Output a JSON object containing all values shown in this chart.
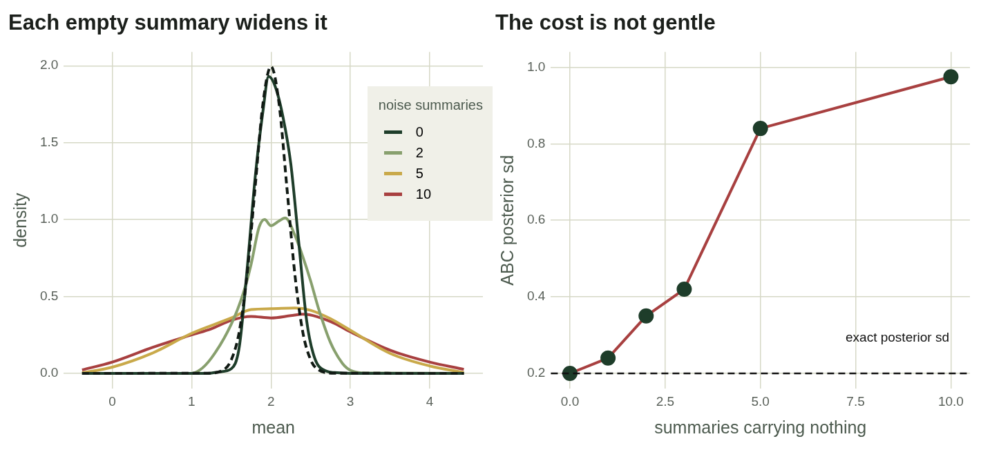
{
  "chart_data": [
    {
      "type": "line",
      "title": "Each empty summary widens it",
      "xlabel": "mean",
      "ylabel": "density",
      "legend_title": "noise summaries",
      "legend": "top right",
      "grid": true,
      "line_style": "solid",
      "marker": "none",
      "xlim": [
        -0.61,
        4.67
      ],
      "xticks": [
        {
          "value": 0,
          "label": "0"
        },
        1,
        2,
        3,
        4
      ],
      "ylim": [
        -0.1,
        2.09
      ],
      "yticks": [
        {
          "value": 0,
          "label": "0.0"
        },
        0.5,
        {
          "value": 1,
          "label": "1.0"
        },
        1.5,
        {
          "value": 2,
          "label": "2.0"
        }
      ],
      "series": [
        {
          "name": "0",
          "color": "#1e3d2a",
          "x": [
            -0.38,
            1.2,
            1.35,
            1.5,
            1.6,
            1.7,
            1.8,
            1.9,
            1.97,
            2.05,
            2.15,
            2.25,
            2.35,
            2.45,
            2.55,
            2.7,
            2.8,
            3.0,
            4.43
          ],
          "values": [
            0,
            0,
            0.01,
            0.03,
            0.17,
            0.68,
            1.27,
            1.71,
            1.93,
            1.87,
            1.67,
            1.36,
            0.85,
            0.34,
            0.1,
            0.014,
            0.005,
            0,
            0
          ]
        },
        {
          "name": "2",
          "color": "#88a06e",
          "x": [
            -0.38,
            1.0,
            1.1,
            1.25,
            1.5,
            1.65,
            1.75,
            1.85,
            1.92,
            2.0,
            2.1,
            2.18,
            2.3,
            2.4,
            2.5,
            2.6,
            2.75,
            2.9,
            3.0,
            3.2,
            4.43
          ],
          "values": [
            0,
            0,
            0.02,
            0.1,
            0.32,
            0.52,
            0.71,
            0.95,
            1.0,
            0.96,
            0.99,
            1.01,
            0.9,
            0.76,
            0.6,
            0.42,
            0.2,
            0.065,
            0.02,
            0.002,
            0
          ]
        },
        {
          "name": "5",
          "color": "#c9a94a",
          "x": [
            -0.38,
            0,
            0.5,
            1.0,
            1.5,
            1.75,
            2.0,
            2.3,
            2.5,
            2.75,
            3.0,
            3.5,
            4.0,
            4.43
          ],
          "values": [
            0.003,
            0.04,
            0.13,
            0.26,
            0.36,
            0.415,
            0.42,
            0.425,
            0.41,
            0.355,
            0.28,
            0.13,
            0.048,
            0.005
          ]
        },
        {
          "name": "10",
          "color": "#a84040",
          "x": [
            -0.38,
            0,
            0.5,
            1.0,
            1.25,
            1.5,
            1.75,
            2.0,
            2.25,
            2.4,
            2.75,
            3.0,
            3.5,
            4.0,
            4.43
          ],
          "values": [
            0.022,
            0.073,
            0.167,
            0.25,
            0.29,
            0.345,
            0.37,
            0.36,
            0.375,
            0.384,
            0.337,
            0.27,
            0.15,
            0.073,
            0.026
          ]
        },
        {
          "color": "#111a14",
          "line_style": "dashed",
          "x": [
            -0.38,
            1.2,
            1.4,
            1.5,
            1.6,
            1.7,
            1.8,
            1.9,
            2.0,
            2.1,
            2.2,
            2.3,
            2.4,
            2.5,
            2.6,
            2.8,
            4.43
          ],
          "values": [
            0,
            0.001,
            0.022,
            0.088,
            0.27,
            0.648,
            1.21,
            1.76,
            1.995,
            1.76,
            1.21,
            0.648,
            0.27,
            0.088,
            0.022,
            0.001,
            0
          ]
        }
      ]
    },
    {
      "type": "line",
      "title": "The cost is not gentle",
      "xlabel": "summaries carrying nothing",
      "ylabel": "ABC posterior sd",
      "grid": true,
      "legend": false,
      "marker": "circle",
      "line_style": "solid",
      "xlim": [
        -0.5,
        10.5
      ],
      "xticks": [
        {
          "value": 0,
          "label": "0.0"
        },
        2.5,
        {
          "value": 5,
          "label": "5.0"
        },
        7.5,
        {
          "value": 10,
          "label": "10.0"
        }
      ],
      "ylim": [
        0.16,
        1.04
      ],
      "yticks": [
        0.2,
        0.4,
        0.6,
        0.8,
        {
          "value": 1,
          "label": "1.0"
        }
      ],
      "series": [
        {
          "color": "#a84040",
          "colors": [
            "#1e3d2a",
            "#1e3d2a",
            "#1e3d2a",
            "#1e3d2a",
            "#1e3d2a",
            "#1e3d2a"
          ],
          "x": [
            0,
            1,
            2,
            3,
            5,
            10
          ],
          "values": [
            0.2,
            0.24,
            0.35,
            0.42,
            0.84,
            0.975
          ]
        }
      ],
      "ref_lines": [
        {
          "axis": "y",
          "value": 0.2,
          "label": "exact posterior sd",
          "color": "#111111",
          "line_style": "dashed"
        }
      ]
    }
  ]
}
